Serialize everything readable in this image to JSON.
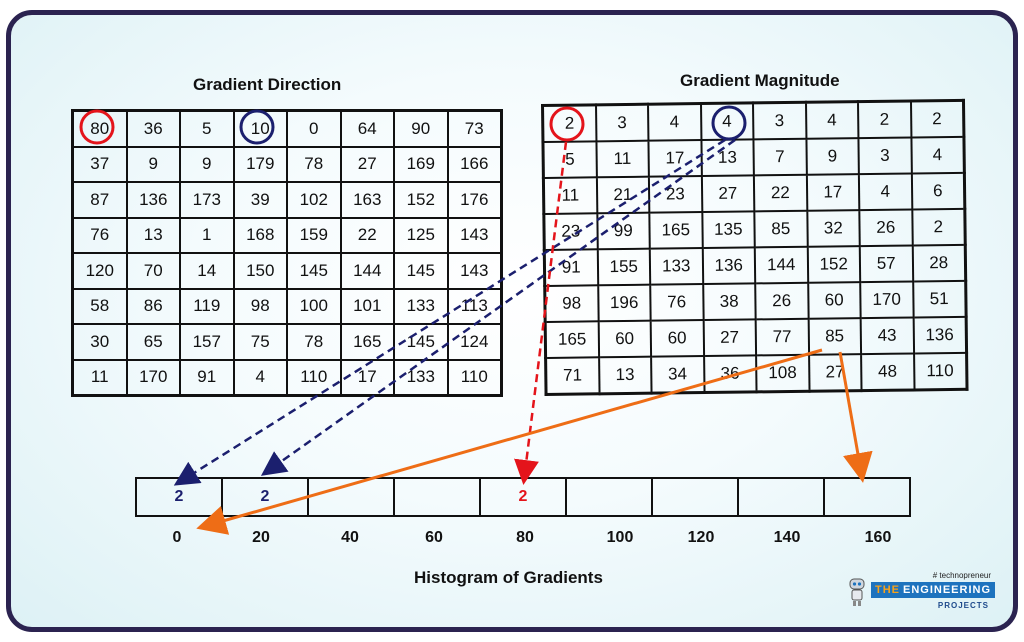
{
  "direction": {
    "title": "Gradient Direction",
    "rows": [
      [
        "80",
        "36",
        "5",
        "10",
        "0",
        "64",
        "90",
        "73"
      ],
      [
        "37",
        "9",
        "9",
        "179",
        "78",
        "27",
        "169",
        "166"
      ],
      [
        "87",
        "136",
        "173",
        "39",
        "102",
        "163",
        "152",
        "176"
      ],
      [
        "76",
        "13",
        "1",
        "168",
        "159",
        "22",
        "125",
        "143"
      ],
      [
        "120",
        "70",
        "14",
        "150",
        "145",
        "144",
        "145",
        "143"
      ],
      [
        "58",
        "86",
        "119",
        "98",
        "100",
        "101",
        "133",
        "113"
      ],
      [
        "30",
        "65",
        "157",
        "75",
        "78",
        "165",
        "145",
        "124"
      ],
      [
        "11",
        "170",
        "91",
        "4",
        "110",
        "17",
        "133",
        "110"
      ]
    ]
  },
  "magnitude": {
    "title": "Gradient Magnitude",
    "rows": [
      [
        "2",
        "3",
        "4",
        "4",
        "3",
        "4",
        "2",
        "2"
      ],
      [
        "5",
        "11",
        "17",
        "13",
        "7",
        "9",
        "3",
        "4"
      ],
      [
        "11",
        "21",
        "23",
        "27",
        "22",
        "17",
        "4",
        "6"
      ],
      [
        "23",
        "99",
        "165",
        "135",
        "85",
        "32",
        "26",
        "2"
      ],
      [
        "91",
        "155",
        "133",
        "136",
        "144",
        "152",
        "57",
        "28"
      ],
      [
        "98",
        "196",
        "76",
        "38",
        "26",
        "60",
        "170",
        "51"
      ],
      [
        "165",
        "60",
        "60",
        "27",
        "77",
        "85",
        "43",
        "136"
      ],
      [
        "71",
        "13",
        "34",
        "36",
        "108",
        "27",
        "48",
        "110"
      ]
    ]
  },
  "histogram": {
    "title": "Histogram of Gradients",
    "bins": [
      "0",
      "20",
      "40",
      "60",
      "80",
      "100",
      "120",
      "140",
      "160"
    ],
    "values": [
      "2",
      "2",
      "",
      "",
      "2",
      "",
      "",
      "",
      ""
    ],
    "value_colors": [
      "#1b1f6e",
      "#1b1f6e",
      "#111",
      "#111",
      "#e4141b",
      "#111",
      "#111",
      "#111",
      "#111"
    ]
  },
  "logo": {
    "tagline": "# technopreneur",
    "name_prefix": "THE",
    "name": "ENGINEERING",
    "subname": "PROJECTS"
  },
  "colors": {
    "red": "#e4141b",
    "navy": "#1b1f6e",
    "orange": "#ee6d16",
    "frame": "#2b2350"
  },
  "highlighted_cells": [
    {
      "table": "direction",
      "row": 0,
      "col": 0,
      "color": "red"
    },
    {
      "table": "direction",
      "row": 0,
      "col": 3,
      "color": "navy"
    },
    {
      "table": "magnitude",
      "row": 0,
      "col": 0,
      "color": "red"
    },
    {
      "table": "magnitude",
      "row": 0,
      "col": 3,
      "color": "navy"
    }
  ]
}
